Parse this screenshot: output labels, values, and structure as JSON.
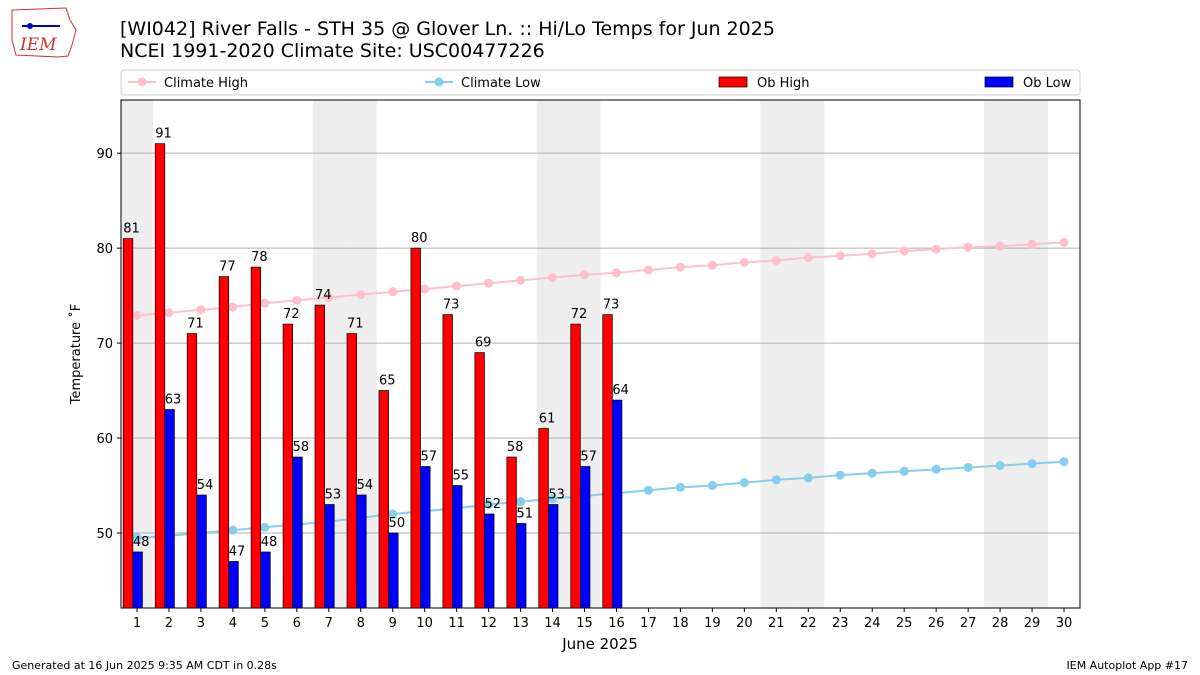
{
  "logo_text": "IEM",
  "footer_left": "Generated at 16 Jun 2025 9:35 AM CDT in 0.28s",
  "footer_right": "IEM Autoplot App #17",
  "chart_data": {
    "type": "bar",
    "title": "[WI042] River Falls - STH 35 @ Glover Ln. :: Hi/Lo Temps for Jun 2025",
    "subtitle": "NCEI 1991-2020 Climate Site: USC00477226",
    "xlabel": "June 2025",
    "ylabel": "Temperature ˚F",
    "x": [
      1,
      2,
      3,
      4,
      5,
      6,
      7,
      8,
      9,
      10,
      11,
      12,
      13,
      14,
      15,
      16,
      17,
      18,
      19,
      20,
      21,
      22,
      23,
      24,
      25,
      26,
      27,
      28,
      29,
      30
    ],
    "xlim": [
      0.5,
      30.5
    ],
    "xticks": [
      1,
      2,
      3,
      4,
      5,
      6,
      7,
      8,
      9,
      10,
      11,
      12,
      13,
      14,
      15,
      16,
      17,
      18,
      19,
      20,
      21,
      22,
      23,
      24,
      25,
      26,
      27,
      28,
      29,
      30
    ],
    "ylim": [
      42.1,
      95.6
    ],
    "yticks": [
      50,
      60,
      70,
      80,
      90
    ],
    "grid": true,
    "shaded_days": [
      1,
      7,
      8,
      14,
      15,
      21,
      22,
      28,
      29
    ],
    "shade_color": "#eeeeee",
    "legend": "top",
    "series": [
      {
        "name": "Climate High",
        "type": "line",
        "color": "#ffc0cb",
        "values": [
          72.9,
          73.2,
          73.5,
          73.8,
          74.2,
          74.5,
          74.8,
          75.1,
          75.4,
          75.7,
          76.0,
          76.3,
          76.6,
          76.9,
          77.2,
          77.4,
          77.7,
          78.0,
          78.2,
          78.5,
          78.7,
          79.0,
          79.2,
          79.4,
          79.7,
          79.9,
          80.1,
          80.2,
          80.4,
          80.6
        ]
      },
      {
        "name": "Climate Low",
        "type": "line",
        "color": "#87ceeb",
        "values": [
          49.5,
          49.7,
          50.0,
          50.3,
          50.6,
          50.9,
          51.2,
          51.6,
          52.0,
          52.3,
          52.6,
          53.0,
          53.3,
          53.6,
          53.9,
          54.2,
          54.5,
          54.8,
          55.0,
          55.3,
          55.6,
          55.8,
          56.1,
          56.3,
          56.5,
          56.7,
          56.9,
          57.1,
          57.3,
          57.5
        ]
      },
      {
        "name": "Ob High",
        "type": "bar",
        "color": "#ff0000",
        "values": [
          81,
          91,
          71,
          77,
          78,
          72,
          74,
          71,
          65,
          80,
          73,
          69,
          58,
          61,
          72,
          73,
          null,
          null,
          null,
          null,
          null,
          null,
          null,
          null,
          null,
          null,
          null,
          null,
          null,
          null
        ]
      },
      {
        "name": "Ob Low",
        "type": "bar",
        "color": "#0000ff",
        "values": [
          48,
          63,
          54,
          47,
          48,
          58,
          53,
          54,
          50,
          57,
          55,
          52,
          51,
          53,
          57,
          64,
          null,
          null,
          null,
          null,
          null,
          null,
          null,
          null,
          null,
          null,
          null,
          null,
          null,
          null
        ]
      }
    ]
  }
}
